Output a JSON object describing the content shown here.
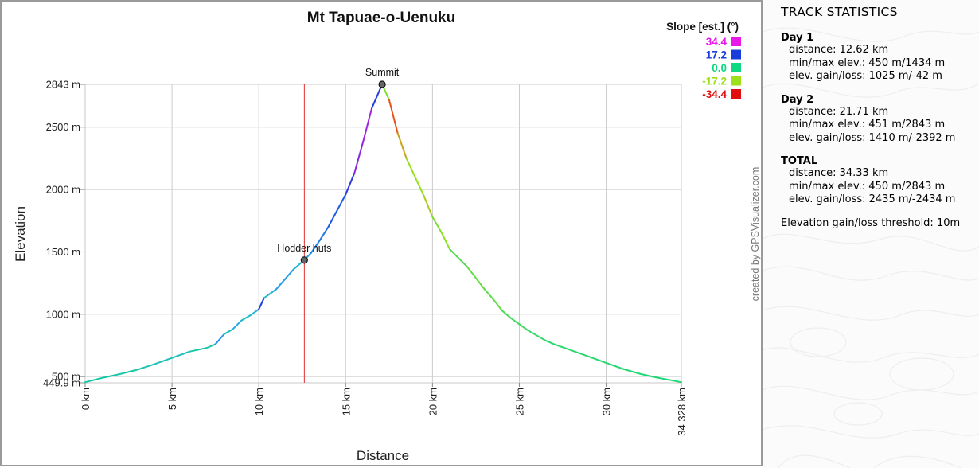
{
  "chart_data": {
    "type": "line",
    "title": "Mt Tapuae-o-Uenuku",
    "xlabel": "Distance",
    "ylabel": "Elevation",
    "xlim": [
      0,
      34.328
    ],
    "ylim": [
      449.9,
      2843
    ],
    "x_ticks": [
      0,
      5,
      10,
      15,
      20,
      25,
      30,
      34.328
    ],
    "x_tick_labels": [
      "0 km",
      "5 km",
      "10 km",
      "15 km",
      "20 km",
      "25 km",
      "30 km",
      "34.328 km"
    ],
    "y_ticks": [
      449.9,
      500,
      1000,
      1500,
      2000,
      2500,
      2843
    ],
    "y_tick_labels": [
      "449.9 m",
      "500 m",
      "1000 m",
      "1500 m",
      "2000 m",
      "2500 m",
      "2843 m"
    ],
    "grid": true,
    "legend": {
      "title": "Slope [est.] (°)",
      "placement": "top-right",
      "entries": [
        {
          "label": "34.4",
          "color": "#e619e6"
        },
        {
          "label": "17.2",
          "color": "#1a3cdc"
        },
        {
          "label": "0.0",
          "color": "#10d880"
        },
        {
          "label": "-17.2",
          "color": "#9be01a"
        },
        {
          "label": "-34.4",
          "color": "#e01010"
        }
      ]
    },
    "vertical_line": {
      "x": 12.62,
      "color": "#e03030"
    },
    "waypoints": [
      {
        "name": "Hodder huts",
        "x": 12.62,
        "y": 1434
      },
      {
        "name": "Summit",
        "x": 17.1,
        "y": 2843
      }
    ],
    "watermark": "created by GPSVisualizer.com",
    "series": [
      {
        "x": [
          0,
          1,
          2,
          3,
          4,
          5,
          6,
          7,
          7.5,
          8,
          8.5,
          9,
          9.5,
          10,
          10.3,
          10.6,
          11,
          11.5,
          12,
          12.62,
          13,
          13.5,
          14,
          14.5,
          15,
          15.5,
          16,
          16.5,
          17.1,
          17.5,
          18,
          18.5,
          19,
          19.5,
          20,
          20.5,
          21,
          21.5,
          22,
          22.5,
          23,
          23.5,
          24,
          24.5,
          25,
          25.5,
          26,
          26.5,
          27,
          28,
          29,
          30,
          31,
          32,
          33,
          34.328
        ],
        "y": [
          455,
          490,
          520,
          555,
          600,
          650,
          700,
          730,
          760,
          840,
          880,
          950,
          990,
          1040,
          1130,
          1160,
          1200,
          1280,
          1360,
          1434,
          1490,
          1590,
          1700,
          1830,
          1960,
          2130,
          2380,
          2650,
          2843,
          2720,
          2450,
          2250,
          2100,
          1950,
          1780,
          1660,
          1520,
          1450,
          1380,
          1290,
          1200,
          1120,
          1030,
          970,
          920,
          870,
          830,
          790,
          760,
          710,
          660,
          610,
          560,
          520,
          490,
          455
        ],
        "slope": [
          2.8,
          2.9,
          3.0,
          3.7,
          4.4,
          4.4,
          2.8,
          3.4,
          9.3,
          4.6,
          8.0,
          4.6,
          5.8,
          17.0,
          5.8,
          7.6,
          9.2,
          9.2,
          6.5,
          8.5,
          11.3,
          12.4,
          14.6,
          14.6,
          18.8,
          26.6,
          28.4,
          17.8,
          -13.7,
          -28.4,
          -21.8,
          -16.7,
          -16.7,
          -18.8,
          -13.5,
          -15.6,
          -7.9,
          -7.9,
          -10.2,
          -10.2,
          -9.1,
          -10.2,
          -6.8,
          -5.7,
          -5.7,
          -4.6,
          -4.6,
          -3.4,
          -2.9,
          -2.9,
          -2.9,
          -2.9,
          -2.3,
          -1.7,
          -1.7
        ]
      }
    ]
  },
  "stats": {
    "title": "TRACK STATISTICS",
    "day1": {
      "title": "Day 1",
      "distance": "distance: 12.62 km",
      "minmax": "min/max elev.: 450 m/1434 m",
      "gainloss": "elev. gain/loss: 1025 m/-42 m"
    },
    "day2": {
      "title": "Day 2",
      "distance": "distance: 21.71 km",
      "minmax": "min/max elev.: 451 m/2843 m",
      "gainloss": "elev. gain/loss: 1410 m/-2392 m"
    },
    "total": {
      "title": "TOTAL",
      "distance": "distance: 34.33 km",
      "minmax": "min/max elev.: 450 m/2843 m",
      "gainloss": "elev. gain/loss: 2435 m/-2434 m"
    },
    "threshold": "Elevation gain/loss threshold: 10m"
  }
}
